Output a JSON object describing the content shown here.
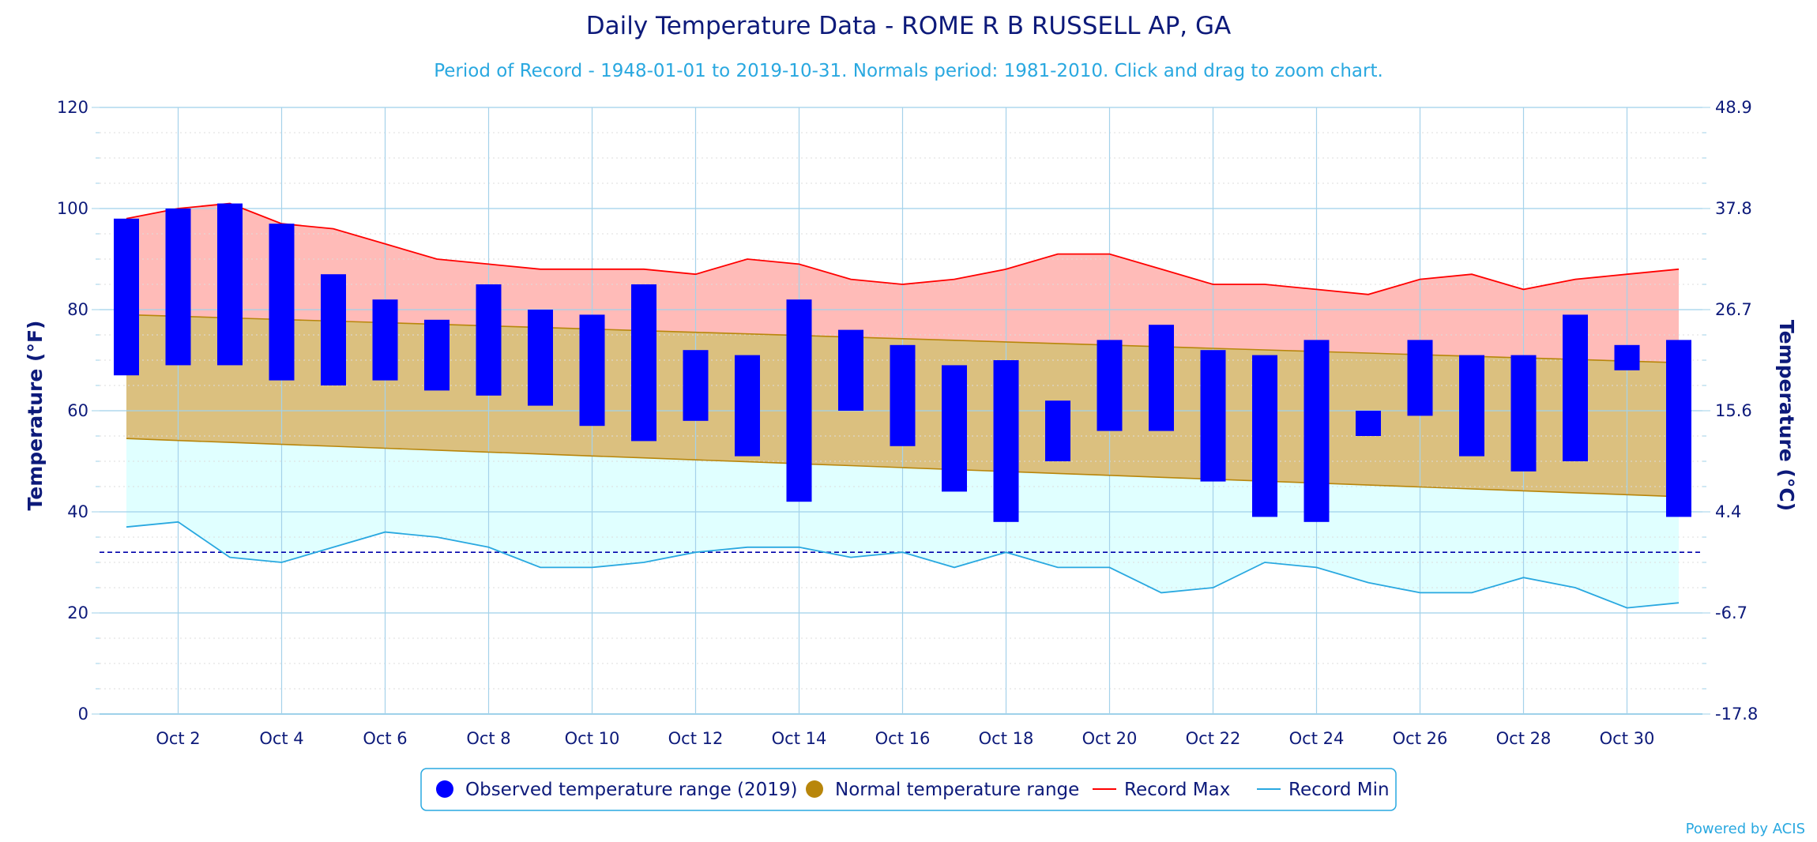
{
  "chart_data": {
    "type": "bar",
    "title": "Daily Temperature Data - ROME R B RUSSELL AP, GA",
    "subtitle": "Period of Record - 1948-01-01 to 2019-10-31. Normals period: 1981-2010. Click and drag to zoom chart.",
    "ylabel": "Temperature (°F)",
    "ylabel_right": "Temperature (°C)",
    "ylim": [
      0,
      120
    ],
    "y_ticks": [
      0,
      20,
      40,
      60,
      80,
      100,
      120
    ],
    "y_ticks_right": [
      "-17.8",
      "-6.7",
      "4.4",
      "15.6",
      "26.7",
      "37.8",
      "48.9"
    ],
    "days": [
      1,
      2,
      3,
      4,
      5,
      6,
      7,
      8,
      9,
      10,
      11,
      12,
      13,
      14,
      15,
      16,
      17,
      18,
      19,
      20,
      21,
      22,
      23,
      24,
      25,
      26,
      27,
      28,
      29,
      30,
      31
    ],
    "x_tick_labels": [
      "Oct 2",
      "Oct 4",
      "Oct 6",
      "Oct 8",
      "Oct 10",
      "Oct 12",
      "Oct 14",
      "Oct 16",
      "Oct 18",
      "Oct 20",
      "Oct 22",
      "Oct 24",
      "Oct 26",
      "Oct 28",
      "Oct 30"
    ],
    "freezing_line": 32,
    "grid": true,
    "legend_position": "bottom-center",
    "series": [
      {
        "name": "Observed temperature range (2019)",
        "color": "#0000ff",
        "low": [
          67,
          69,
          69,
          66,
          65,
          66,
          64,
          63,
          61,
          57,
          54,
          58,
          51,
          42,
          60,
          53,
          44,
          38,
          50,
          56,
          56,
          46,
          39,
          38,
          55,
          59,
          51,
          48,
          50,
          68,
          39
        ],
        "high": [
          98,
          100,
          101,
          97,
          87,
          82,
          78,
          85,
          80,
          79,
          85,
          72,
          71,
          82,
          76,
          73,
          69,
          70,
          62,
          74,
          77,
          72,
          71,
          74,
          60,
          74,
          71,
          71,
          79,
          73,
          74
        ]
      },
      {
        "name": "Normal temperature range",
        "color": "#b8860b",
        "fill": "#dbc07f",
        "low_start": 54.5,
        "low_end": 43,
        "high_start": 79,
        "high_end": 69.5
      },
      {
        "name": "Record Max",
        "color": "#ff0000",
        "fill": "#ffbbb8",
        "values": [
          98,
          100,
          101,
          97,
          96,
          93,
          90,
          89,
          88,
          88,
          88,
          87,
          90,
          89,
          86,
          85,
          86,
          88,
          91,
          91,
          88,
          85,
          85,
          84,
          83,
          86,
          87,
          84,
          86,
          87,
          88
        ]
      },
      {
        "name": "Record Min",
        "color": "#29a8e0",
        "fill": "#e0ffff",
        "values": [
          37,
          38,
          31,
          30,
          33,
          36,
          35,
          33,
          29,
          29,
          30,
          32,
          33,
          33,
          31,
          32,
          29,
          32,
          29,
          29,
          24,
          25,
          30,
          29,
          26,
          24,
          24,
          27,
          25,
          21,
          22
        ]
      }
    ]
  },
  "credit": "Powered by ACIS"
}
